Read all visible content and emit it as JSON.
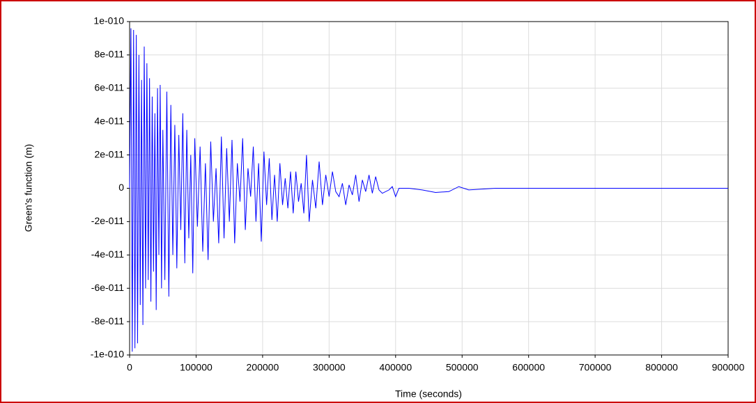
{
  "chart_data": {
    "type": "line",
    "xlabel": "Time (seconds)",
    "ylabel": "Green's function (m)",
    "x": [
      0,
      2000,
      4000,
      6000,
      8000,
      10000,
      12000,
      14000,
      16000,
      18000,
      20000,
      22000,
      24000,
      26000,
      28000,
      30000,
      32000,
      34000,
      36000,
      38000,
      40000,
      42000,
      44000,
      46000,
      48000,
      50000,
      53000,
      56000,
      59000,
      62000,
      65000,
      68000,
      71000,
      74000,
      77000,
      80000,
      83000,
      86000,
      89000,
      92000,
      95000,
      98000,
      102000,
      106000,
      110000,
      114000,
      118000,
      122000,
      126000,
      130000,
      134000,
      138000,
      142000,
      146000,
      150000,
      154000,
      158000,
      162000,
      166000,
      170000,
      174000,
      178000,
      182000,
      186000,
      190000,
      194000,
      198000,
      202000,
      206000,
      210000,
      214000,
      218000,
      222000,
      226000,
      230000,
      234000,
      238000,
      242000,
      246000,
      250000,
      254000,
      258000,
      262000,
      266000,
      270000,
      275000,
      280000,
      285000,
      290000,
      295000,
      300000,
      305000,
      310000,
      315000,
      320000,
      325000,
      330000,
      335000,
      340000,
      345000,
      350000,
      355000,
      360000,
      365000,
      370000,
      375000,
      380000,
      390000,
      395000,
      400000,
      405000,
      420000,
      440000,
      460000,
      480000,
      495000,
      510000,
      550000,
      900000
    ],
    "series": [
      {
        "color": "#0000ff",
        "values": [
          0,
          9.6e-11,
          -9.8e-11,
          9.5e-11,
          -9.6e-11,
          9.2e-11,
          -9.3e-11,
          8e-11,
          -7e-11,
          6.5e-11,
          -8.2e-11,
          8.5e-11,
          -6e-11,
          7.5e-11,
          -5.5e-11,
          6.6e-11,
          -6.8e-11,
          5.5e-11,
          -5e-11,
          4.5e-11,
          -7.3e-11,
          6e-11,
          -4e-11,
          6.2e-11,
          -6e-11,
          3.5e-11,
          -5.5e-11,
          5.8e-11,
          -6.5e-11,
          5e-11,
          -4e-11,
          3.8e-11,
          -4.8e-11,
          3.2e-11,
          -2.5e-11,
          4.5e-11,
          -4.5e-11,
          3.5e-11,
          -3e-11,
          2e-11,
          -5.1e-11,
          3e-11,
          -2.3e-11,
          2.5e-11,
          -3.8e-11,
          1.5e-11,
          -4.3e-11,
          2.8e-11,
          -2e-11,
          1.2e-11,
          -3.3e-11,
          3.1e-11,
          -3e-11,
          2.4e-11,
          -2e-11,
          2.9e-11,
          -3.3e-11,
          1.5e-11,
          -8e-12,
          3e-11,
          -2.5e-11,
          1.2e-11,
          -5e-12,
          2.5e-11,
          -2e-11,
          1.5e-11,
          -3.2e-11,
          2.2e-11,
          -1e-11,
          1.8e-11,
          -1.9e-11,
          8e-12,
          -2e-11,
          1.5e-11,
          -1e-11,
          6e-12,
          -1.2e-11,
          1e-11,
          -1.5e-11,
          1e-11,
          -8e-12,
          3e-12,
          -1.5e-11,
          2e-11,
          -2e-11,
          5e-12,
          -1.2e-11,
          1.6e-11,
          -1e-11,
          8e-12,
          -5e-12,
          1e-11,
          -2e-12,
          -5e-12,
          3e-12,
          -1e-11,
          2e-12,
          -4e-12,
          8e-12,
          -8e-12,
          5e-12,
          -2e-12,
          8e-12,
          -3e-12,
          7e-12,
          -1e-12,
          -3e-12,
          -1e-12,
          1e-12,
          -5e-12,
          0,
          0,
          -1e-12,
          -2.5e-12,
          -2e-12,
          1e-12,
          -1e-12,
          0,
          0
        ]
      }
    ],
    "xlim": [
      0,
      900000
    ],
    "xticks": [
      0,
      100000,
      200000,
      300000,
      400000,
      500000,
      600000,
      700000,
      800000,
      900000
    ],
    "ylim": [
      -1e-10,
      1e-10
    ],
    "yticks": [
      {
        "value": -1e-10,
        "label": "-1e-010"
      },
      {
        "value": -8e-11,
        "label": "-8e-011"
      },
      {
        "value": -6e-11,
        "label": "-6e-011"
      },
      {
        "value": -4e-11,
        "label": "-4e-011"
      },
      {
        "value": -2e-11,
        "label": "-2e-011"
      },
      0,
      {
        "value": 2e-11,
        "label": "2e-011"
      },
      {
        "value": 4e-11,
        "label": "4e-011"
      },
      {
        "value": 6e-11,
        "label": "6e-011"
      },
      {
        "value": 8e-11,
        "label": "8e-011"
      },
      {
        "value": 1e-10,
        "label": "1e-010"
      }
    ],
    "grid": true
  }
}
